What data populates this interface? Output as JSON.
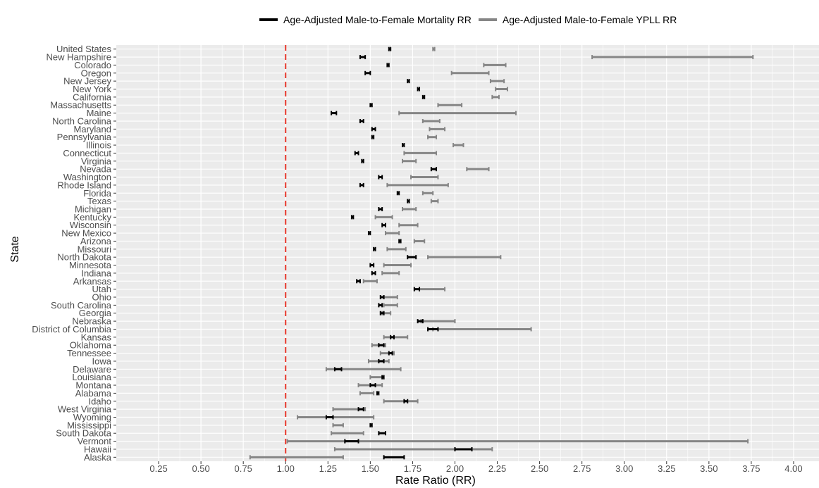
{
  "chart_data": {
    "type": "errorbar",
    "xlabel": "Rate Ratio (RR)",
    "ylabel": "State",
    "xlim": [
      0,
      4.15
    ],
    "x_ticks": [
      "0.25",
      "0.50",
      "0.75",
      "1.00",
      "1.25",
      "1.50",
      "1.75",
      "2.00",
      "2.25",
      "2.50",
      "2.75",
      "3.00",
      "3.25",
      "3.50",
      "3.75",
      "4.00"
    ],
    "reference_line": {
      "x": 1.0,
      "color": "#e8382c",
      "style": "dashed"
    },
    "colors": {
      "mortality": "#000000",
      "yll": "#868686",
      "panel_bg": "#ebebeb",
      "grid": "#ffffff"
    },
    "legend_position": "top",
    "series": [
      {
        "name": "Age-Adjusted Male-to-Female Mortality RR",
        "key": "mortality"
      },
      {
        "name": "Age-Adjusted Male-to-Female YPLL RR",
        "key": "yll"
      }
    ],
    "states": [
      {
        "name": "United States",
        "mortality": [
          1.61,
          1.62
        ],
        "yll": [
          1.87,
          1.88
        ]
      },
      {
        "name": "New Hampshire",
        "mortality": [
          1.44,
          1.47
        ],
        "yll": [
          2.81,
          3.76
        ]
      },
      {
        "name": "Colorado",
        "mortality": [
          1.6,
          1.61
        ],
        "yll": [
          2.17,
          2.3
        ]
      },
      {
        "name": "Oregon",
        "mortality": [
          1.47,
          1.5
        ],
        "yll": [
          1.98,
          2.2
        ]
      },
      {
        "name": "New Jersey",
        "mortality": [
          1.72,
          1.73
        ],
        "yll": [
          2.21,
          2.29
        ]
      },
      {
        "name": "New York",
        "mortality": [
          1.78,
          1.79
        ],
        "yll": [
          2.24,
          2.31
        ]
      },
      {
        "name": "California",
        "mortality": [
          1.81,
          1.82
        ],
        "yll": [
          2.22,
          2.26
        ]
      },
      {
        "name": "Massachusetts",
        "mortality": [
          1.5,
          1.51
        ],
        "yll": [
          1.9,
          2.04
        ]
      },
      {
        "name": "Maine",
        "mortality": [
          1.27,
          1.3
        ],
        "yll": [
          1.67,
          2.36
        ]
      },
      {
        "name": "North Carolina",
        "mortality": [
          1.44,
          1.46
        ],
        "yll": [
          1.81,
          1.91
        ]
      },
      {
        "name": "Maryland",
        "mortality": [
          1.51,
          1.53
        ],
        "yll": [
          1.85,
          1.94
        ]
      },
      {
        "name": "Pennsylvania",
        "mortality": [
          1.51,
          1.52
        ],
        "yll": [
          1.84,
          1.89
        ]
      },
      {
        "name": "Illinois",
        "mortality": [
          1.69,
          1.7
        ],
        "yll": [
          1.99,
          2.05
        ]
      },
      {
        "name": "Connecticut",
        "mortality": [
          1.41,
          1.43
        ],
        "yll": [
          1.7,
          1.89
        ]
      },
      {
        "name": "Virginia",
        "mortality": [
          1.45,
          1.46
        ],
        "yll": [
          1.69,
          1.77
        ]
      },
      {
        "name": "Nevada",
        "mortality": [
          1.86,
          1.89
        ],
        "yll": [
          2.07,
          2.2
        ]
      },
      {
        "name": "Washington",
        "mortality": [
          1.55,
          1.57
        ],
        "yll": [
          1.74,
          1.9
        ]
      },
      {
        "name": "Rhode Island",
        "mortality": [
          1.44,
          1.46
        ],
        "yll": [
          1.6,
          1.96
        ]
      },
      {
        "name": "Florida",
        "mortality": [
          1.66,
          1.67
        ],
        "yll": [
          1.81,
          1.87
        ]
      },
      {
        "name": "Texas",
        "mortality": [
          1.72,
          1.73
        ],
        "yll": [
          1.86,
          1.9
        ]
      },
      {
        "name": "Michigan",
        "mortality": [
          1.55,
          1.57
        ],
        "yll": [
          1.69,
          1.77
        ]
      },
      {
        "name": "Kentucky",
        "mortality": [
          1.39,
          1.4
        ],
        "yll": [
          1.53,
          1.63
        ]
      },
      {
        "name": "Wisconsin",
        "mortality": [
          1.57,
          1.59
        ],
        "yll": [
          1.67,
          1.78
        ]
      },
      {
        "name": "New Mexico",
        "mortality": [
          1.49,
          1.5
        ],
        "yll": [
          1.59,
          1.67
        ]
      },
      {
        "name": "Arizona",
        "mortality": [
          1.67,
          1.68
        ],
        "yll": [
          1.76,
          1.82
        ]
      },
      {
        "name": "Missouri",
        "mortality": [
          1.52,
          1.53
        ],
        "yll": [
          1.6,
          1.71
        ]
      },
      {
        "name": "North Dakota",
        "mortality": [
          1.72,
          1.77
        ],
        "yll": [
          1.84,
          2.27
        ]
      },
      {
        "name": "Minnesota",
        "mortality": [
          1.5,
          1.52
        ],
        "yll": [
          1.58,
          1.74
        ]
      },
      {
        "name": "Indiana",
        "mortality": [
          1.51,
          1.53
        ],
        "yll": [
          1.57,
          1.67
        ]
      },
      {
        "name": "Arkansas",
        "mortality": [
          1.42,
          1.44
        ],
        "yll": [
          1.46,
          1.54
        ]
      },
      {
        "name": "Utah",
        "mortality": [
          1.76,
          1.79
        ],
        "yll": [
          1.79,
          1.94
        ]
      },
      {
        "name": "Ohio",
        "mortality": [
          1.56,
          1.58
        ],
        "yll": [
          1.58,
          1.66
        ]
      },
      {
        "name": "South Carolina",
        "mortality": [
          1.55,
          1.57
        ],
        "yll": [
          1.58,
          1.66
        ]
      },
      {
        "name": "Georgia",
        "mortality": [
          1.56,
          1.58
        ],
        "yll": [
          1.57,
          1.62
        ]
      },
      {
        "name": "Nebraska",
        "mortality": [
          1.78,
          1.81
        ],
        "yll": [
          1.8,
          2.0
        ]
      },
      {
        "name": "District of Columbia",
        "mortality": [
          1.84,
          1.9
        ],
        "yll": [
          1.87,
          2.45
        ]
      },
      {
        "name": "Kansas",
        "mortality": [
          1.62,
          1.64
        ],
        "yll": [
          1.58,
          1.72
        ]
      },
      {
        "name": "Oklahoma",
        "mortality": [
          1.55,
          1.58
        ],
        "yll": [
          1.51,
          1.59
        ]
      },
      {
        "name": "Tennessee",
        "mortality": [
          1.61,
          1.63
        ],
        "yll": [
          1.56,
          1.64
        ]
      },
      {
        "name": "Iowa",
        "mortality": [
          1.55,
          1.58
        ],
        "yll": [
          1.49,
          1.61
        ]
      },
      {
        "name": "Delaware",
        "mortality": [
          1.29,
          1.33
        ],
        "yll": [
          1.24,
          1.68
        ]
      },
      {
        "name": "Louisiana",
        "mortality": [
          1.57,
          1.58
        ],
        "yll": [
          1.5,
          1.58
        ]
      },
      {
        "name": "Montana",
        "mortality": [
          1.5,
          1.53
        ],
        "yll": [
          1.43,
          1.57
        ]
      },
      {
        "name": "Alabama",
        "mortality": [
          1.54,
          1.55
        ],
        "yll": [
          1.44,
          1.52
        ]
      },
      {
        "name": "Idaho",
        "mortality": [
          1.7,
          1.72
        ],
        "yll": [
          1.58,
          1.78
        ]
      },
      {
        "name": "West Virginia",
        "mortality": [
          1.43,
          1.46
        ],
        "yll": [
          1.28,
          1.47
        ]
      },
      {
        "name": "Wyoming",
        "mortality": [
          1.24,
          1.28
        ],
        "yll": [
          1.07,
          1.52
        ]
      },
      {
        "name": "Mississippi",
        "mortality": [
          1.5,
          1.51
        ],
        "yll": [
          1.28,
          1.34
        ]
      },
      {
        "name": "South Dakota",
        "mortality": [
          1.55,
          1.59
        ],
        "yll": [
          1.27,
          1.46
        ]
      },
      {
        "name": "Vermont",
        "mortality": [
          1.35,
          1.43
        ],
        "yll": [
          1.01,
          3.73
        ]
      },
      {
        "name": "Hawaii",
        "mortality": [
          2.0,
          2.1
        ],
        "yll": [
          1.29,
          2.22
        ]
      },
      {
        "name": "Alaska",
        "mortality": [
          1.58,
          1.7
        ],
        "yll": [
          0.79,
          1.34
        ]
      }
    ]
  }
}
